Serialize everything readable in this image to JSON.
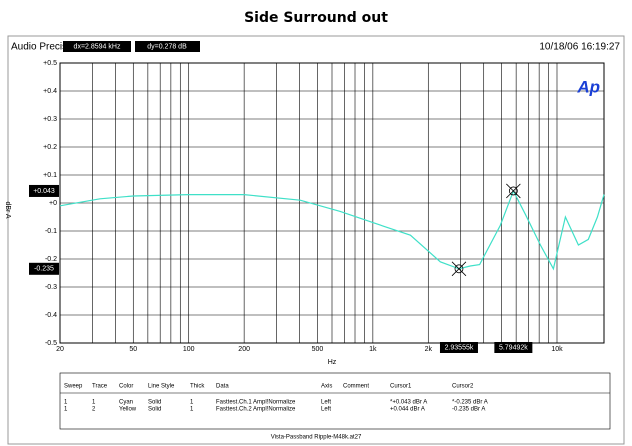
{
  "chart_data": {
    "type": "line",
    "title": "Side Surround out",
    "brand": "Audio Precision",
    "timestamp": "10/18/06 16:19:27",
    "logo": "Ap",
    "xlabel": "Hz",
    "ylabel": "dBr A",
    "xscale": "log",
    "grid": true,
    "xlim": [
      20,
      18000
    ],
    "ylim": [
      -0.5,
      0.5
    ],
    "xticks": [
      20,
      50,
      100,
      200,
      500,
      {
        "value": 1000,
        "label": "1k"
      },
      {
        "value": 2000,
        "label": "2k"
      },
      {
        "value": 10000,
        "label": "10k"
      }
    ],
    "xminor": [
      30,
      40,
      60,
      70,
      80,
      90,
      300,
      400,
      600,
      700,
      800,
      900,
      3000,
      4000,
      5000,
      6000,
      7000,
      8000,
      9000
    ],
    "yticks": [
      {
        "value": 0.5,
        "label": "+0.5"
      },
      {
        "value": 0.4,
        "label": "+0.4"
      },
      {
        "value": 0.3,
        "label": "+0.3"
      },
      {
        "value": 0.2,
        "label": "+0.2"
      },
      {
        "value": 0.1,
        "label": "+0.1"
      },
      {
        "value": 0,
        "label": "+0"
      },
      -0.1,
      -0.2,
      -0.3,
      -0.4,
      -0.5
    ],
    "x": [
      20,
      33,
      50,
      100,
      200,
      403,
      665,
      1000,
      1600,
      2325,
      2935.55,
      3380,
      3800,
      4920,
      5794.92,
      6730,
      8130,
      9560,
      11110,
      13070,
      14800,
      16580,
      18000
    ],
    "series": [
      {
        "color": "#3fe0c8",
        "values": [
          -0.01,
          0.015,
          0.025,
          0.03,
          0.03,
          0.01,
          -0.03,
          -0.07,
          -0.115,
          -0.21,
          -0.235,
          -0.225,
          -0.22,
          -0.08,
          0.043,
          -0.04,
          -0.15,
          -0.235,
          -0.05,
          -0.15,
          -0.13,
          -0.05,
          0.03
        ]
      }
    ],
    "delta_x": "dx=2.8594 kHz",
    "delta_y": "dy=0.278  dB",
    "cursors": [
      {
        "x": 2935.55,
        "x_label": "2.93555k",
        "y": -0.235,
        "y_label": "-0.235"
      },
      {
        "x": 5794.92,
        "x_label": "5.79492k",
        "y": 0.043,
        "y_label": "+0.043"
      }
    ],
    "table": {
      "columns": [
        "Sweep",
        "Trace",
        "Color",
        "Line Style",
        "Thick",
        "Data",
        "Axis",
        "Comment",
        "Cursor1",
        "Cursor2"
      ],
      "rows": [
        {
          "sweep": "1",
          "trace": "1",
          "color": "Cyan",
          "line_style": "Solid",
          "thick": "1",
          "data": "Fasttest.Ch.1 Ampl!Normalize",
          "axis": "Left",
          "cursor1": "*+0.043  dBr A",
          "cursor2": "*-0.235  dBr A"
        },
        {
          "sweep": "1",
          "trace": "2",
          "color": "Yellow",
          "line_style": "Solid",
          "thick": "1",
          "data": "Fasttest.Ch.2 Ampl!Normalize",
          "axis": "Left",
          "cursor1": "+0.044  dBr A",
          "cursor2": "-0.235  dBr A"
        }
      ]
    },
    "footer": "Vista-Passband Ripple-M48k.at27"
  }
}
